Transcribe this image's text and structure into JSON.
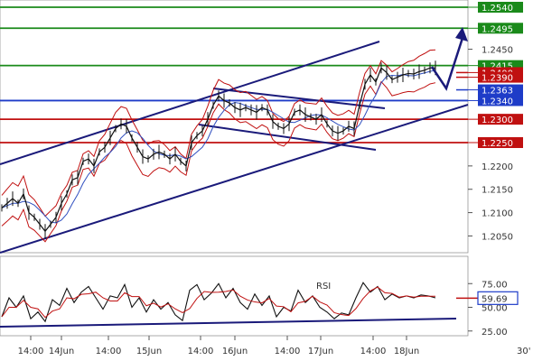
{
  "chart_data": {
    "type": "candlestick",
    "timeframe": "30'",
    "price_axis": {
      "ylim": [
        1.2,
        1.256
      ],
      "ticks": [
        "1.2050",
        "1.2100",
        "1.2150",
        "1.2200",
        "1.2450"
      ]
    },
    "x_axis": {
      "labels": [
        "14:00",
        "14Jun",
        "14:00",
        "15Jun",
        "14:00",
        "16Jun",
        "14:00",
        "17Jun",
        "14:00",
        "18Jun"
      ]
    },
    "levels": [
      {
        "value": "1.2540",
        "color": "#1a8a1a"
      },
      {
        "value": "1.2495",
        "color": "#1a8a1a"
      },
      {
        "value": "1.2415",
        "color": "#1a8a1a"
      },
      {
        "value": "1.2400",
        "color": "#c01010"
      },
      {
        "value": "1.2390",
        "color": "#c01010"
      },
      {
        "value": "1.2363",
        "color": "#1e3cc8"
      },
      {
        "value": "1.2340",
        "color": "#1e3cc8"
      },
      {
        "value": "1.2300",
        "color": "#c01010"
      },
      {
        "value": "1.2250",
        "color": "#c01010"
      }
    ],
    "price_series": [
      {
        "t": 0,
        "v": 1.211
      },
      {
        "t": 6,
        "v": 1.212
      },
      {
        "t": 12,
        "v": 1.213
      },
      {
        "t": 18,
        "v": 1.212
      },
      {
        "t": 24,
        "v": 1.214
      },
      {
        "t": 30,
        "v": 1.21
      },
      {
        "t": 36,
        "v": 1.209
      },
      {
        "t": 42,
        "v": 1.2075
      },
      {
        "t": 48,
        "v": 1.206
      },
      {
        "t": 54,
        "v": 1.2075
      },
      {
        "t": 60,
        "v": 1.209
      },
      {
        "t": 66,
        "v": 1.212
      },
      {
        "t": 72,
        "v": 1.214
      },
      {
        "t": 78,
        "v": 1.217
      },
      {
        "t": 84,
        "v": 1.2175
      },
      {
        "t": 90,
        "v": 1.221
      },
      {
        "t": 96,
        "v": 1.2215
      },
      {
        "t": 102,
        "v": 1.22
      },
      {
        "t": 108,
        "v": 1.223
      },
      {
        "t": 114,
        "v": 1.224
      },
      {
        "t": 120,
        "v": 1.226
      },
      {
        "t": 126,
        "v": 1.228
      },
      {
        "t": 132,
        "v": 1.229
      },
      {
        "t": 138,
        "v": 1.2285
      },
      {
        "t": 144,
        "v": 1.226
      },
      {
        "t": 150,
        "v": 1.224
      },
      {
        "t": 156,
        "v": 1.222
      },
      {
        "t": 162,
        "v": 1.2215
      },
      {
        "t": 168,
        "v": 1.2225
      },
      {
        "t": 174,
        "v": 1.223
      },
      {
        "t": 180,
        "v": 1.2225
      },
      {
        "t": 186,
        "v": 1.2215
      },
      {
        "t": 192,
        "v": 1.2225
      },
      {
        "t": 198,
        "v": 1.221
      },
      {
        "t": 204,
        "v": 1.22
      },
      {
        "t": 210,
        "v": 1.225
      },
      {
        "t": 216,
        "v": 1.2265
      },
      {
        "t": 222,
        "v": 1.2275
      },
      {
        "t": 228,
        "v": 1.23
      },
      {
        "t": 234,
        "v": 1.233
      },
      {
        "t": 240,
        "v": 1.235
      },
      {
        "t": 246,
        "v": 1.234
      },
      {
        "t": 252,
        "v": 1.2335
      },
      {
        "t": 258,
        "v": 1.2325
      },
      {
        "t": 264,
        "v": 1.232
      },
      {
        "t": 270,
        "v": 1.2325
      },
      {
        "t": 276,
        "v": 1.232
      },
      {
        "t": 282,
        "v": 1.2315
      },
      {
        "t": 288,
        "v": 1.2325
      },
      {
        "t": 294,
        "v": 1.232
      },
      {
        "t": 300,
        "v": 1.2295
      },
      {
        "t": 306,
        "v": 1.2285
      },
      {
        "t": 312,
        "v": 1.228
      },
      {
        "t": 318,
        "v": 1.229
      },
      {
        "t": 324,
        "v": 1.2315
      },
      {
        "t": 330,
        "v": 1.232
      },
      {
        "t": 336,
        "v": 1.231
      },
      {
        "t": 342,
        "v": 1.2305
      },
      {
        "t": 348,
        "v": 1.23
      },
      {
        "t": 354,
        "v": 1.231
      },
      {
        "t": 360,
        "v": 1.229
      },
      {
        "t": 366,
        "v": 1.2275
      },
      {
        "t": 372,
        "v": 1.227
      },
      {
        "t": 378,
        "v": 1.2275
      },
      {
        "t": 384,
        "v": 1.2285
      },
      {
        "t": 390,
        "v": 1.228
      },
      {
        "t": 396,
        "v": 1.233
      },
      {
        "t": 402,
        "v": 1.2375
      },
      {
        "t": 408,
        "v": 1.2395
      },
      {
        "t": 414,
        "v": 1.238
      },
      {
        "t": 420,
        "v": 1.241
      },
      {
        "t": 426,
        "v": 1.24
      },
      {
        "t": 432,
        "v": 1.2385
      },
      {
        "t": 438,
        "v": 1.239
      },
      {
        "t": 444,
        "v": 1.2395
      },
      {
        "t": 450,
        "v": 1.2398
      },
      {
        "t": 456,
        "v": 1.2397
      },
      {
        "t": 462,
        "v": 1.2402
      },
      {
        "t": 468,
        "v": 1.2405
      },
      {
        "t": 474,
        "v": 1.241
      },
      {
        "t": 480,
        "v": 1.241
      }
    ],
    "rsi": {
      "label": "RSI",
      "ylim": [
        20,
        100
      ],
      "ticks": [
        "75.00",
        "50.00",
        "25.00"
      ],
      "current": "59.69",
      "values": [
        {
          "t": 0,
          "v": 40
        },
        {
          "t": 8,
          "v": 60
        },
        {
          "t": 16,
          "v": 50
        },
        {
          "t": 24,
          "v": 62
        },
        {
          "t": 32,
          "v": 38
        },
        {
          "t": 40,
          "v": 45
        },
        {
          "t": 48,
          "v": 35
        },
        {
          "t": 56,
          "v": 58
        },
        {
          "t": 64,
          "v": 52
        },
        {
          "t": 72,
          "v": 70
        },
        {
          "t": 80,
          "v": 55
        },
        {
          "t": 88,
          "v": 66
        },
        {
          "t": 96,
          "v": 72
        },
        {
          "t": 104,
          "v": 60
        },
        {
          "t": 112,
          "v": 48
        },
        {
          "t": 120,
          "v": 62
        },
        {
          "t": 128,
          "v": 60
        },
        {
          "t": 136,
          "v": 74
        },
        {
          "t": 144,
          "v": 50
        },
        {
          "t": 152,
          "v": 60
        },
        {
          "t": 160,
          "v": 45
        },
        {
          "t": 168,
          "v": 58
        },
        {
          "t": 176,
          "v": 48
        },
        {
          "t": 184,
          "v": 55
        },
        {
          "t": 192,
          "v": 42
        },
        {
          "t": 200,
          "v": 36
        },
        {
          "t": 208,
          "v": 68
        },
        {
          "t": 216,
          "v": 74
        },
        {
          "t": 224,
          "v": 58
        },
        {
          "t": 232,
          "v": 65
        },
        {
          "t": 240,
          "v": 75
        },
        {
          "t": 248,
          "v": 60
        },
        {
          "t": 256,
          "v": 70
        },
        {
          "t": 264,
          "v": 55
        },
        {
          "t": 272,
          "v": 48
        },
        {
          "t": 280,
          "v": 64
        },
        {
          "t": 288,
          "v": 52
        },
        {
          "t": 296,
          "v": 62
        },
        {
          "t": 304,
          "v": 40
        },
        {
          "t": 312,
          "v": 50
        },
        {
          "t": 320,
          "v": 46
        },
        {
          "t": 328,
          "v": 68
        },
        {
          "t": 336,
          "v": 55
        },
        {
          "t": 344,
          "v": 62
        },
        {
          "t": 352,
          "v": 50
        },
        {
          "t": 360,
          "v": 45
        },
        {
          "t": 368,
          "v": 38
        },
        {
          "t": 376,
          "v": 44
        },
        {
          "t": 384,
          "v": 42
        },
        {
          "t": 392,
          "v": 60
        },
        {
          "t": 400,
          "v": 76
        },
        {
          "t": 408,
          "v": 66
        },
        {
          "t": 416,
          "v": 72
        },
        {
          "t": 424,
          "v": 58
        },
        {
          "t": 432,
          "v": 64
        },
        {
          "t": 440,
          "v": 60
        },
        {
          "t": 448,
          "v": 62
        },
        {
          "t": 456,
          "v": 60
        },
        {
          "t": 464,
          "v": 63
        },
        {
          "t": 472,
          "v": 62
        },
        {
          "t": 480,
          "v": 60
        }
      ]
    }
  }
}
